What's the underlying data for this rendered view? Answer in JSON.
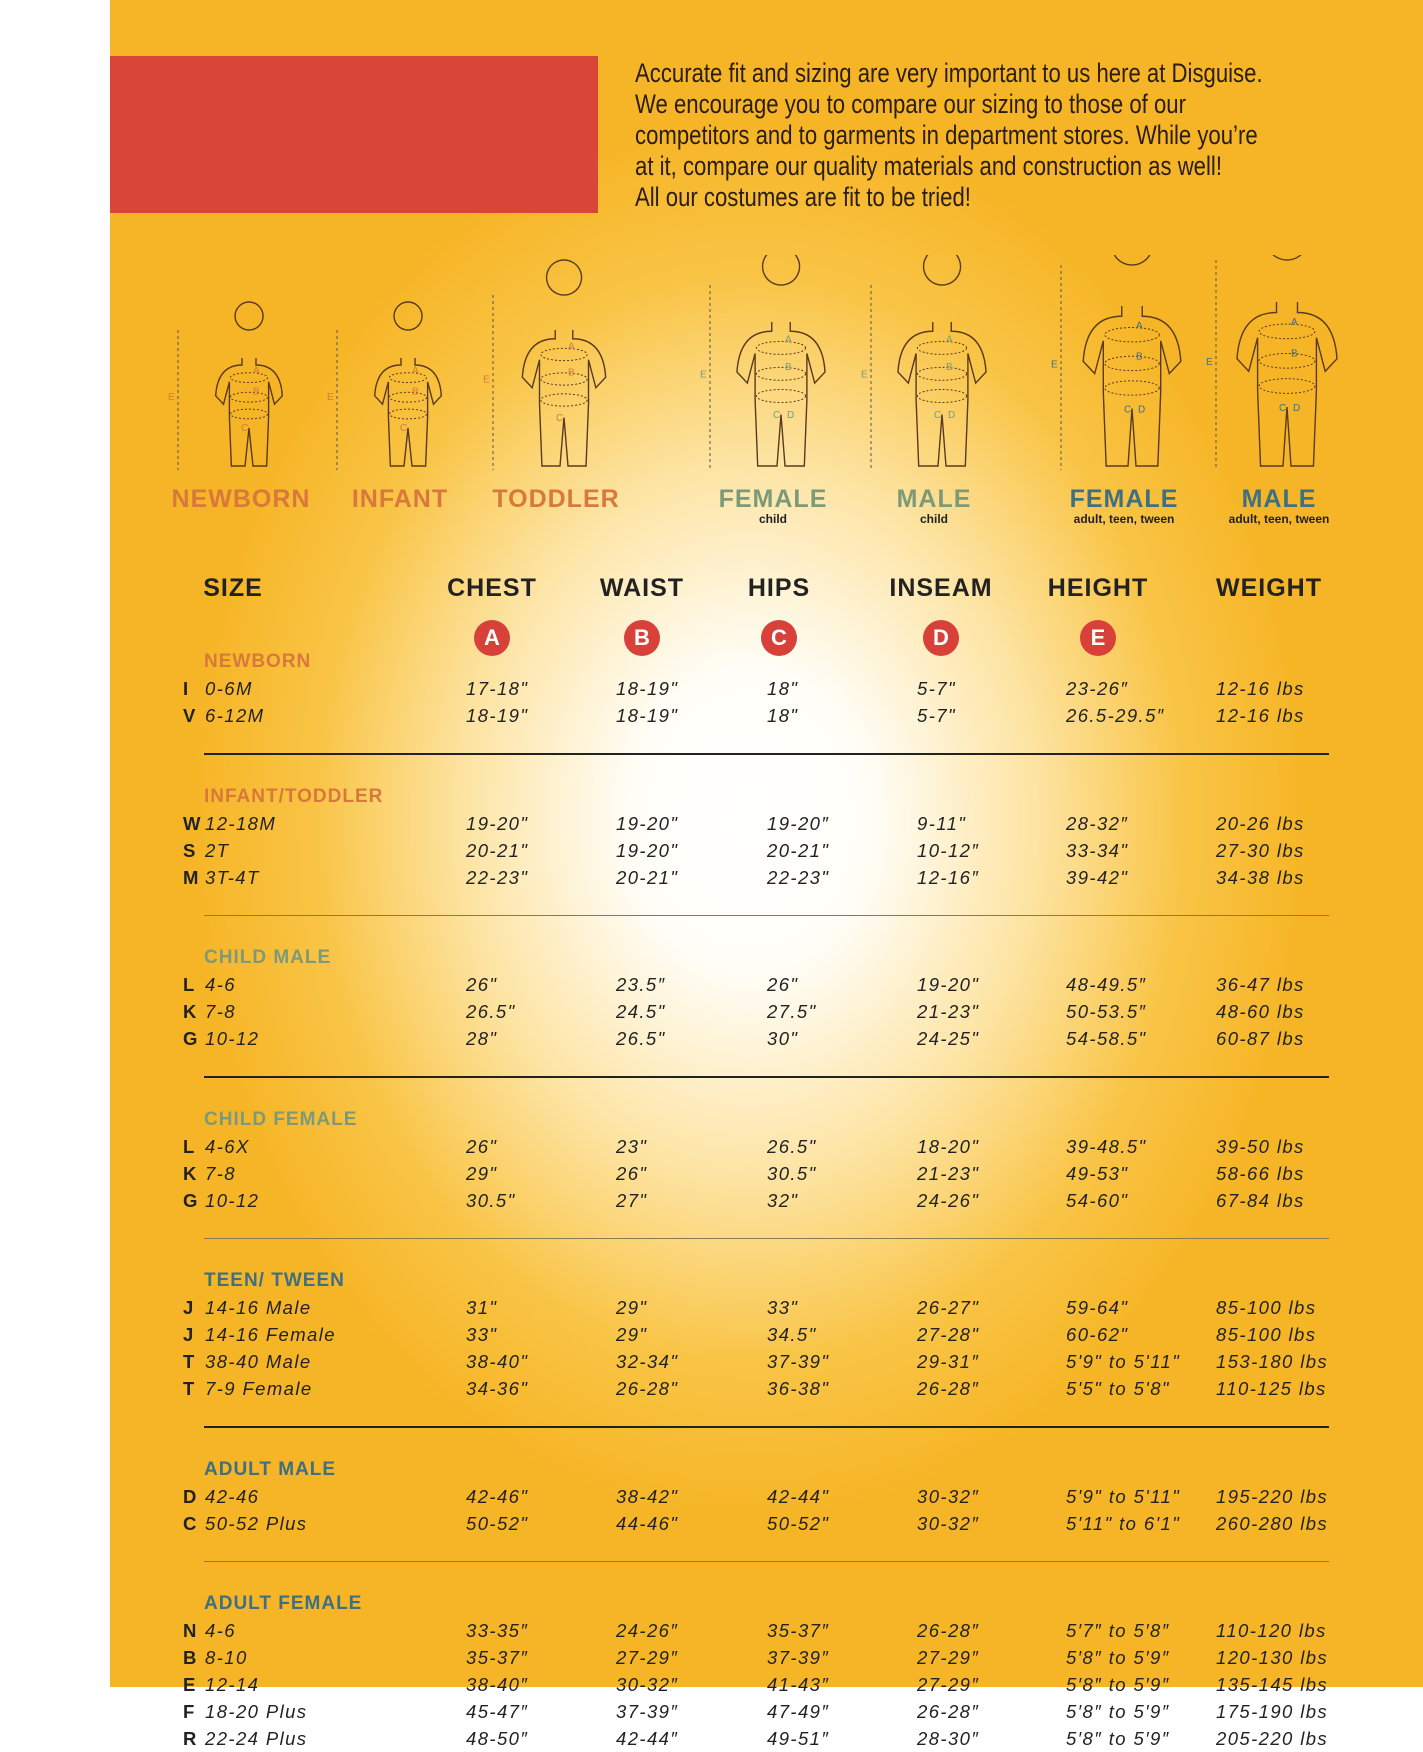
{
  "intro": {
    "lines": [
      "Accurate fit and sizing are very important to us here at Disguise.",
      "We encourage you to compare our sizing to those of our",
      "competitors and to garments in department stores. While you’re",
      "at it, compare our quality materials and construction as well!",
      "All our costumes are fit to be tried!"
    ]
  },
  "colors": {
    "red_box": "#d94637",
    "circle": "#d8413a",
    "orange": "#d8783c",
    "green": "#7c9a78",
    "teal": "#3f6f82",
    "background": "#f6b526"
  },
  "figures": [
    {
      "label": "NEWBORN",
      "sub": "",
      "color": "orange"
    },
    {
      "label": "INFANT",
      "sub": "",
      "color": "orange"
    },
    {
      "label": "TODDLER",
      "sub": "",
      "color": "orange"
    },
    {
      "label": "FEMALE",
      "sub": "child",
      "color": "green"
    },
    {
      "label": "MALE",
      "sub": "child",
      "color": "green"
    },
    {
      "label": "FEMALE",
      "sub": "adult, teen, tween",
      "color": "teal"
    },
    {
      "label": "MALE",
      "sub": "adult, teen, tween",
      "color": "teal"
    }
  ],
  "figure_marks": [
    "A",
    "B",
    "C",
    "D",
    "E"
  ],
  "headers": {
    "size": "SIZE",
    "columns": [
      {
        "label": "CHEST",
        "letter": "A"
      },
      {
        "label": "WAIST",
        "letter": "B"
      },
      {
        "label": "HIPS",
        "letter": "C"
      },
      {
        "label": "INSEAM",
        "letter": "D"
      },
      {
        "label": "HEIGHT",
        "letter": "E"
      },
      {
        "label": "WEIGHT",
        "letter": ""
      }
    ]
  },
  "groups": [
    {
      "title": "NEWBORN",
      "color": "orange",
      "rows": [
        [
          "I",
          "0-6M",
          "17-18\"",
          "18-19\"",
          "18\"",
          "5-7\"",
          "23-26″",
          "12-16 lbs"
        ],
        [
          "V",
          "6-12M",
          "18-19\"",
          "18-19\"",
          "18\"",
          "5-7\"",
          "26.5-29.5″",
          "12-16 lbs"
        ]
      ]
    },
    {
      "title": "INFANT/TODDLER",
      "color": "orange",
      "rows": [
        [
          "W",
          "12-18M",
          "19-20\"",
          "19-20\"",
          "19-20″",
          "9-11\"",
          "28-32″",
          "20-26 lbs"
        ],
        [
          "S",
          "2T",
          "20-21\"",
          "19-20\"",
          "20-21\"",
          "10-12″",
          "33-34\"",
          "27-30 lbs"
        ],
        [
          "M",
          "3T-4T",
          "22-23\"",
          "20-21\"",
          "22-23\"",
          "12-16″",
          "39-42\"",
          "34-38 lbs"
        ]
      ]
    },
    {
      "title": "CHILD MALE",
      "color": "green",
      "rows": [
        [
          "L",
          "4-6",
          "26\"",
          "23.5″",
          "26\"",
          "19-20\"",
          "48-49.5″",
          "36-47 lbs"
        ],
        [
          "K",
          "7-8",
          "26.5\"",
          "24.5\"",
          "27.5\"",
          "21-23\"",
          "50-53.5″",
          "48-60 lbs"
        ],
        [
          "G",
          "10-12",
          "28\"",
          "26.5\"",
          "30\"",
          "24-25\"",
          "54-58.5\"",
          "60-87 lbs"
        ]
      ]
    },
    {
      "title": "CHILD FEMALE",
      "color": "green",
      "rows": [
        [
          "L",
          "4-6X",
          "26\"",
          "23\"",
          "26.5\"",
          "18-20\"",
          "39-48.5\"",
          "39-50 lbs"
        ],
        [
          "K",
          "7-8",
          "29\"",
          "26\"",
          "30.5\"",
          "21-23\"",
          "49-53\"",
          "58-66 lbs"
        ],
        [
          "G",
          "10-12",
          "30.5\"",
          "27\"",
          "32\"",
          "24-26\"",
          "54-60\"",
          "67-84 lbs"
        ]
      ]
    },
    {
      "title": "TEEN/ TWEEN",
      "color": "teal",
      "rows": [
        [
          "J",
          "14-16 Male",
          "31\"",
          "29\"",
          "33\"",
          "26-27\"",
          "59-64\"",
          "85-100 lbs"
        ],
        [
          "J",
          "14-16 Female",
          "33\"",
          "29\"",
          "34.5\"",
          "27-28\"",
          "60-62\"",
          "85-100 lbs"
        ],
        [
          "T",
          "38-40 Male",
          "38-40\"",
          "32-34\"",
          "37-39\"",
          "29-31″",
          "5'9\" to 5'11\"",
          "153-180 lbs"
        ],
        [
          "T",
          "7-9 Female",
          "34-36\"",
          "26-28\"",
          "36-38\"",
          "26-28″",
          "5'5\" to 5'8\"",
          "110-125 lbs"
        ]
      ]
    },
    {
      "title": "ADULT MALE",
      "color": "teal",
      "rows": [
        [
          "D",
          "42-46",
          "42-46\"",
          "38-42\"",
          "42-44\"",
          "30-32″",
          "5'9\" to 5'11\"",
          "195-220 lbs"
        ],
        [
          "C",
          "50-52 Plus",
          "50-52\"",
          "44-46\"",
          "50-52\"",
          "30-32″",
          "5'11\" to 6'1\"",
          "260-280 lbs"
        ]
      ]
    },
    {
      "title": "ADULT FEMALE",
      "color": "teal",
      "rows": [
        [
          "N",
          "4-6",
          "33-35″",
          "24-26″",
          "35-37″",
          "26-28″",
          "5′7″ to 5′8″",
          "110-120 lbs"
        ],
        [
          "B",
          "8-10",
          "35-37″",
          "27-29″",
          "37-39″",
          "27-29″",
          "5′8″ to 5′9″",
          "120-130 lbs"
        ],
        [
          "E",
          "12-14",
          "38-40″",
          "30-32″",
          "41-43″",
          "27-29″",
          "5′8″ to 5′9″",
          "135-145 lbs"
        ],
        [
          "F",
          "18-20 Plus",
          "45-47″",
          "37-39″",
          "47-49″",
          "26-28″",
          "5′8″ to 5′9″",
          "175-190 lbs"
        ],
        [
          "R",
          "22-24 Plus",
          "48-50″",
          "42-44″",
          "49-51″",
          "28-30″",
          "5′8″ to 5′9″",
          "205-220 lbs"
        ]
      ]
    }
  ]
}
